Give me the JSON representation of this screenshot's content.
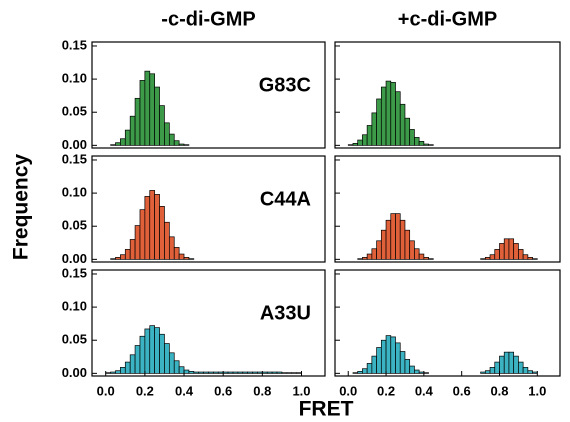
{
  "ylabel": "Frequency",
  "xlabel": "FRET",
  "chart_data": [
    {
      "type": "histogram",
      "title": "-c-di-GMP",
      "label": "G83C",
      "color": "#3c9a48",
      "bins": [
        0,
        0.025,
        0.05,
        0.075,
        0.1,
        0.125,
        0.15,
        0.175,
        0.2,
        0.225,
        0.25,
        0.275,
        0.3,
        0.325,
        0.35,
        0.375,
        0.4,
        0.425,
        0.45,
        0.475,
        0.5,
        0.525,
        0.55,
        0.575,
        0.6,
        0.625,
        0.65,
        0.675,
        0.7,
        0.725,
        0.75,
        0.775,
        0.8,
        0.825,
        0.85,
        0.875,
        0.9,
        0.925,
        0.95,
        0.975,
        1.0
      ],
      "values": [
        0,
        0.001,
        0.004,
        0.01,
        0.023,
        0.044,
        0.071,
        0.098,
        0.112,
        0.108,
        0.088,
        0.06,
        0.034,
        0.017,
        0.007,
        0.002,
        0.001,
        0,
        0,
        0,
        0,
        0,
        0,
        0,
        0,
        0,
        0,
        0,
        0,
        0,
        0,
        0,
        0,
        0,
        0,
        0,
        0,
        0,
        0,
        0
      ],
      "xlim": [
        -0.07,
        1.12
      ],
      "ylim": [
        -0.004,
        0.156
      ],
      "yticks": [
        {
          "value": 0,
          "label": "0.00"
        },
        {
          "value": 0.05,
          "label": "0.05"
        },
        {
          "value": 0.1,
          "label": "0.10"
        },
        {
          "value": 0.15,
          "label": "0.15"
        }
      ]
    },
    {
      "type": "histogram",
      "title": "+c-di-GMP",
      "color": "#3c9a48",
      "bins": [
        0,
        0.025,
        0.05,
        0.075,
        0.1,
        0.125,
        0.15,
        0.175,
        0.2,
        0.225,
        0.25,
        0.275,
        0.3,
        0.325,
        0.35,
        0.375,
        0.4,
        0.425,
        0.45,
        0.475,
        0.5,
        0.525,
        0.55,
        0.575,
        0.6,
        0.625,
        0.65,
        0.675,
        0.7,
        0.725,
        0.75,
        0.775,
        0.8,
        0.825,
        0.85,
        0.875,
        0.9,
        0.925,
        0.95,
        0.975,
        1.0
      ],
      "values": [
        0.001,
        0.003,
        0.008,
        0.016,
        0.03,
        0.049,
        0.07,
        0.088,
        0.097,
        0.095,
        0.081,
        0.062,
        0.041,
        0.024,
        0.012,
        0.006,
        0.002,
        0.001,
        0,
        0,
        0,
        0,
        0,
        0,
        0,
        0,
        0,
        0,
        0,
        0,
        0,
        0,
        0,
        0,
        0,
        0,
        0,
        0,
        0,
        0
      ],
      "xlim": [
        -0.07,
        1.12
      ],
      "ylim": [
        -0.004,
        0.156
      ],
      "yticks": [
        0,
        0.05,
        0.1,
        0.15
      ]
    },
    {
      "type": "histogram",
      "label": "C44A",
      "color": "#e0603a",
      "bins": [
        0,
        0.025,
        0.05,
        0.075,
        0.1,
        0.125,
        0.15,
        0.175,
        0.2,
        0.225,
        0.25,
        0.275,
        0.3,
        0.325,
        0.35,
        0.375,
        0.4,
        0.425,
        0.45,
        0.475,
        0.5,
        0.525,
        0.55,
        0.575,
        0.6,
        0.625,
        0.65,
        0.675,
        0.7,
        0.725,
        0.75,
        0.775,
        0.8,
        0.825,
        0.85,
        0.875,
        0.9,
        0.925,
        0.95,
        0.975,
        1.0
      ],
      "values": [
        0,
        0.001,
        0.003,
        0.007,
        0.015,
        0.03,
        0.051,
        0.075,
        0.095,
        0.104,
        0.098,
        0.08,
        0.056,
        0.034,
        0.018,
        0.008,
        0.003,
        0.001,
        0,
        0,
        0,
        0,
        0,
        0,
        0,
        0,
        0,
        0,
        0,
        0,
        0,
        0,
        0,
        0,
        0,
        0,
        0,
        0,
        0,
        0
      ],
      "xlim": [
        -0.07,
        1.12
      ],
      "ylim": [
        -0.004,
        0.156
      ],
      "yticks": [
        {
          "value": 0,
          "label": "0.00"
        },
        {
          "value": 0.05,
          "label": "0.05"
        },
        {
          "value": 0.1,
          "label": "0.10"
        },
        {
          "value": 0.15,
          "label": "0.15"
        }
      ]
    },
    {
      "type": "histogram",
      "color": "#e0603a",
      "bins": [
        0,
        0.025,
        0.05,
        0.075,
        0.1,
        0.125,
        0.15,
        0.175,
        0.2,
        0.225,
        0.25,
        0.275,
        0.3,
        0.325,
        0.35,
        0.375,
        0.4,
        0.425,
        0.45,
        0.475,
        0.5,
        0.525,
        0.55,
        0.575,
        0.6,
        0.625,
        0.65,
        0.675,
        0.7,
        0.725,
        0.75,
        0.775,
        0.8,
        0.825,
        0.85,
        0.875,
        0.9,
        0.925,
        0.95,
        0.975,
        1.0
      ],
      "values": [
        0,
        0,
        0.001,
        0.003,
        0.008,
        0.016,
        0.028,
        0.044,
        0.059,
        0.069,
        0.069,
        0.059,
        0.044,
        0.028,
        0.016,
        0.008,
        0.003,
        0.001,
        0,
        0,
        0,
        0,
        0,
        0,
        0,
        0,
        0,
        0,
        0.001,
        0.003,
        0.007,
        0.015,
        0.024,
        0.031,
        0.031,
        0.024,
        0.015,
        0.007,
        0.003,
        0.001
      ],
      "xlim": [
        -0.07,
        1.12
      ],
      "ylim": [
        -0.004,
        0.156
      ],
      "yticks": [
        0,
        0.05,
        0.1,
        0.15
      ]
    },
    {
      "type": "histogram",
      "label": "A33U",
      "color": "#3bb3c3",
      "bins": [
        0,
        0.025,
        0.05,
        0.075,
        0.1,
        0.125,
        0.15,
        0.175,
        0.2,
        0.225,
        0.25,
        0.275,
        0.3,
        0.325,
        0.35,
        0.375,
        0.4,
        0.425,
        0.45,
        0.475,
        0.5,
        0.525,
        0.55,
        0.575,
        0.6,
        0.625,
        0.65,
        0.675,
        0.7,
        0.725,
        0.75,
        0.775,
        0.8,
        0.825,
        0.85,
        0.875,
        0.9,
        0.925,
        0.95,
        0.975,
        1.0
      ],
      "values": [
        0.001,
        0.002,
        0.004,
        0.009,
        0.017,
        0.028,
        0.042,
        0.056,
        0.067,
        0.072,
        0.069,
        0.059,
        0.045,
        0.031,
        0.019,
        0.01,
        0.005,
        0.003,
        0.002,
        0.002,
        0.002,
        0.002,
        0.002,
        0.002,
        0.002,
        0.002,
        0.002,
        0.002,
        0.002,
        0.002,
        0.002,
        0.002,
        0.002,
        0.002,
        0.002,
        0.002,
        0.001,
        0.001,
        0.001,
        0.001
      ],
      "xlim": [
        -0.07,
        1.12
      ],
      "ylim": [
        -0.004,
        0.156
      ],
      "yticks": [
        {
          "value": 0,
          "label": "0.00"
        },
        {
          "value": 0.05,
          "label": "0.05"
        },
        {
          "value": 0.1,
          "label": "0.10"
        },
        {
          "value": 0.15,
          "label": "0.15"
        }
      ],
      "xticks": [
        {
          "value": 0,
          "label": "0.0"
        },
        0.2,
        0.4,
        0.6,
        0.8,
        {
          "value": 1,
          "label": "1.0"
        }
      ]
    },
    {
      "type": "histogram",
      "color": "#3bb3c3",
      "bins": [
        0,
        0.025,
        0.05,
        0.075,
        0.1,
        0.125,
        0.15,
        0.175,
        0.2,
        0.225,
        0.25,
        0.275,
        0.3,
        0.325,
        0.35,
        0.375,
        0.4,
        0.425,
        0.45,
        0.475,
        0.5,
        0.525,
        0.55,
        0.575,
        0.6,
        0.625,
        0.65,
        0.675,
        0.7,
        0.725,
        0.75,
        0.775,
        0.8,
        0.825,
        0.85,
        0.875,
        0.9,
        0.925,
        0.95,
        0.975,
        1.0
      ],
      "values": [
        0,
        0.001,
        0.003,
        0.007,
        0.015,
        0.026,
        0.039,
        0.05,
        0.057,
        0.055,
        0.046,
        0.033,
        0.021,
        0.011,
        0.005,
        0.002,
        0.001,
        0,
        0,
        0,
        0,
        0,
        0,
        0,
        0,
        0,
        0,
        0,
        0.002,
        0.004,
        0.009,
        0.017,
        0.026,
        0.032,
        0.032,
        0.026,
        0.017,
        0.009,
        0.004,
        0.002
      ],
      "xlim": [
        -0.07,
        1.12
      ],
      "ylim": [
        -0.004,
        0.156
      ],
      "yticks": [
        0,
        0.05,
        0.1,
        0.15
      ],
      "xticks": [
        {
          "value": 0,
          "label": "0.0"
        },
        0.2,
        0.4,
        0.6,
        0.8,
        {
          "value": 1,
          "label": "1.0"
        }
      ]
    }
  ]
}
